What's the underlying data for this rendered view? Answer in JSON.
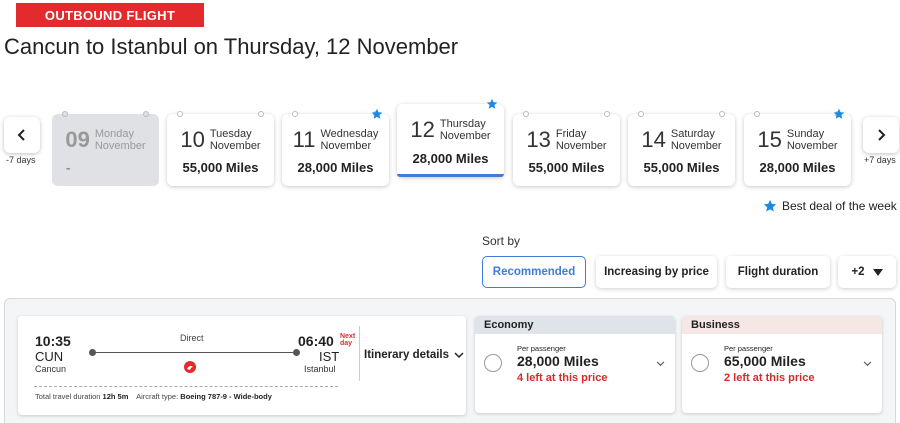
{
  "header": {
    "badge": "OUTBOUND FLIGHT",
    "title": "Cancun to Istanbul on Thursday, 12 November"
  },
  "date_nav": {
    "prev_label": "-7 days",
    "next_label": "+7 days"
  },
  "days": [
    {
      "num": "09",
      "weekday": "Monday",
      "month": "November",
      "miles": "-",
      "best_deal": false,
      "state": "disabled"
    },
    {
      "num": "10",
      "weekday": "Tuesday",
      "month": "November",
      "miles": "55,000 Miles",
      "best_deal": false,
      "state": "normal"
    },
    {
      "num": "11",
      "weekday": "Wednesday",
      "month": "November",
      "miles": "28,000 Miles",
      "best_deal": true,
      "state": "normal"
    },
    {
      "num": "12",
      "weekday": "Thursday",
      "month": "November",
      "miles": "28,000 Miles",
      "best_deal": true,
      "state": "selected"
    },
    {
      "num": "13",
      "weekday": "Friday",
      "month": "November",
      "miles": "55,000 Miles",
      "best_deal": false,
      "state": "normal"
    },
    {
      "num": "14",
      "weekday": "Saturday",
      "month": "November",
      "miles": "55,000 Miles",
      "best_deal": false,
      "state": "normal"
    },
    {
      "num": "15",
      "weekday": "Sunday",
      "month": "November",
      "miles": "28,000 Miles",
      "best_deal": true,
      "state": "normal"
    }
  ],
  "legend": {
    "best_deal": "Best deal of the week",
    "star_color": "#1e88e5"
  },
  "sort": {
    "label": "Sort by",
    "options": [
      "Recommended",
      "Increasing by price",
      "Flight duration",
      "+2"
    ],
    "selected": "Recommended"
  },
  "flight": {
    "depart_time": "10:35",
    "depart_code": "CUN",
    "depart_city": "Cancun",
    "arrive_time": "06:40",
    "arrive_code": "IST",
    "arrive_city": "Istanbul",
    "next_day_line1": "Next",
    "next_day_line2": "day",
    "stops": "Direct",
    "itinerary_label": "Itinerary details",
    "duration_label": "Total travel duration",
    "duration": "12h 5m",
    "aircraft_label": "Aircraft type:",
    "aircraft": "Boeing 787-9 - Wide-body"
  },
  "fares": [
    {
      "cabin": "Economy",
      "per_passenger": "Per passenger",
      "miles": "28,000 Miles",
      "availability": "4 left at this price",
      "head_color": "#dfe3ea"
    },
    {
      "cabin": "Business",
      "per_passenger": "Per passenger",
      "miles": "65,000 Miles",
      "availability": "2 left at this price",
      "head_color": "#f6e6e4"
    }
  ],
  "colors": {
    "brand_red": "#e32a2d",
    "accent_blue": "#3f7bd8",
    "warning_red": "#d62b2b"
  }
}
